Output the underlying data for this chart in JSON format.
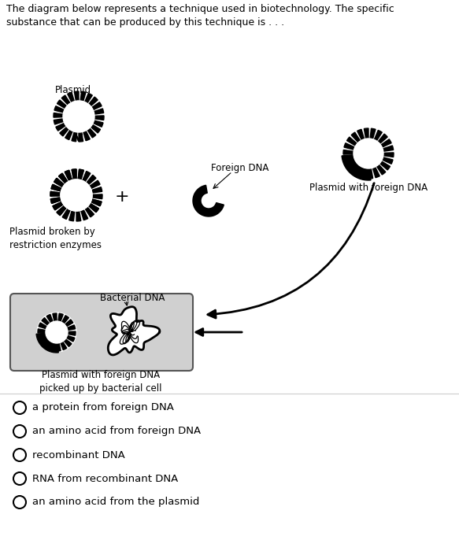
{
  "title_text": "The diagram below represents a technique used in biotechnology. The specific\nsubstance that can be produced by this technique is . . .",
  "labels": {
    "plasmid": "Plasmid",
    "broken": "Plasmid broken by\nrestriction enzymes",
    "foreign_dna": "Foreign DNA",
    "plasmid_foreign": "Plasmid with foreign DNA",
    "bacterial_dna": "Bacterial DNA",
    "picked_up": "Plasmid with foreign DNA\npicked up by bacterial cell"
  },
  "options": [
    "a protein from foreign DNA",
    "an amino acid from foreign DNA",
    "recombinant DNA",
    "RNA from recombinant DNA",
    "an amino acid from the plasmid"
  ],
  "bg_color": "#ffffff",
  "text_color": "#000000",
  "title_fontsize": 9.0,
  "label_fontsize": 8.5,
  "option_fontsize": 9.5
}
